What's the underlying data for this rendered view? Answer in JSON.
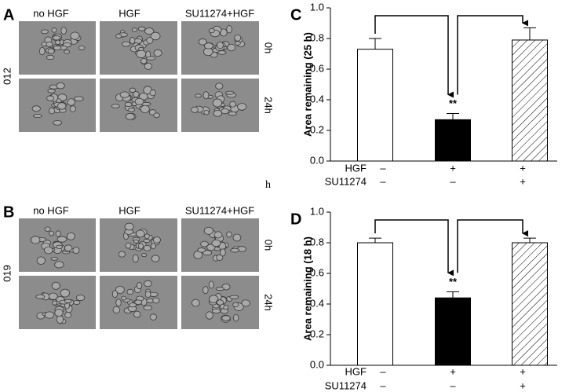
{
  "image_panels": [
    {
      "label": "A",
      "columns": [
        "no HGF",
        "HGF",
        "SU11274+HGF"
      ],
      "row_group": "012",
      "rows": [
        "0h",
        "24h"
      ]
    },
    {
      "label": "B",
      "columns": [
        "no HGF",
        "HGF",
        "SU11274+HGF"
      ],
      "row_group": "019",
      "rows": [
        "0h",
        "24h"
      ]
    }
  ],
  "stray_text": "h",
  "chart_data": [
    {
      "type": "bar",
      "panel_label": "C",
      "y_label": "Area remaining (25 h)",
      "factors": [
        {
          "name": "HGF",
          "levels": [
            "–",
            "+",
            "+"
          ]
        },
        {
          "name": "SU11274",
          "levels": [
            "–",
            "–",
            "+"
          ]
        }
      ],
      "values": [
        0.73,
        0.27,
        0.79
      ],
      "errors": [
        0.07,
        0.04,
        0.08
      ],
      "colors": [
        "#ffffff",
        "#000000",
        "#ffffff"
      ],
      "hatched": [
        false,
        false,
        true
      ],
      "annotations": [
        {
          "bar": 1,
          "text": "**"
        }
      ],
      "ylim": [
        0,
        1
      ],
      "yticks": [
        {
          "value": 0,
          "label": "0.0"
        },
        0.2,
        0.4,
        0.6,
        0.8,
        {
          "value": 1,
          "label": "1.0"
        }
      ]
    },
    {
      "type": "bar",
      "panel_label": "D",
      "y_label": "Area remaining (18 h)",
      "factors": [
        {
          "name": "HGF",
          "levels": [
            "–",
            "+",
            "+"
          ]
        },
        {
          "name": "SU11274",
          "levels": [
            "–",
            "–",
            "+"
          ]
        }
      ],
      "values": [
        0.8,
        0.44,
        0.8
      ],
      "errors": [
        0.03,
        0.04,
        0.03
      ],
      "colors": [
        "#ffffff",
        "#000000",
        "#ffffff"
      ],
      "hatched": [
        false,
        false,
        true
      ],
      "annotations": [
        {
          "bar": 1,
          "text": "**"
        }
      ],
      "ylim": [
        0,
        1
      ],
      "yticks": [
        {
          "value": 0,
          "label": "0.0"
        },
        0.2,
        0.4,
        0.6,
        0.8,
        {
          "value": 1,
          "label": "1.0"
        }
      ]
    }
  ]
}
